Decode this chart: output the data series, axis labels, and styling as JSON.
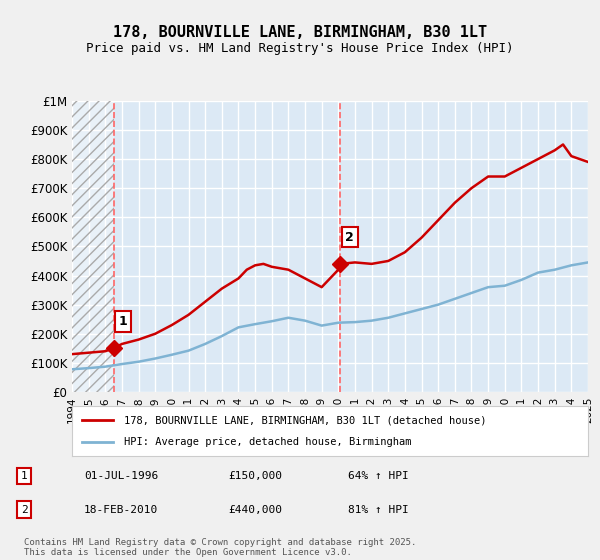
{
  "title": "178, BOURNVILLE LANE, BIRMINGHAM, B30 1LT",
  "subtitle": "Price paid vs. HM Land Registry's House Price Index (HPI)",
  "ylabel_top": "£1M",
  "yticks": [
    0,
    100000,
    200000,
    300000,
    400000,
    500000,
    600000,
    700000,
    800000,
    900000,
    1000000
  ],
  "ytick_labels": [
    "£0",
    "£100K",
    "£200K",
    "£300K",
    "£400K",
    "£500K",
    "£600K",
    "£700K",
    "£800K",
    "£900K",
    "£1M"
  ],
  "xmin": 1994,
  "xmax": 2025,
  "ymin": 0,
  "ymax": 1000000,
  "background_color": "#dce9f5",
  "plot_bg_color": "#dce9f5",
  "grid_color": "#ffffff",
  "line1_color": "#cc0000",
  "line2_color": "#7fb3d3",
  "marker_color": "#cc0000",
  "sale1_x": 1996.5,
  "sale1_y": 150000,
  "sale1_label": "1",
  "sale2_x": 2010.12,
  "sale2_y": 440000,
  "sale2_label": "2",
  "vline1_x": 1996.5,
  "vline2_x": 2010.12,
  "legend1_label": "178, BOURNVILLE LANE, BIRMINGHAM, B30 1LT (detached house)",
  "legend2_label": "HPI: Average price, detached house, Birmingham",
  "annotation1": "1    01-JUL-1996        £150,000        64% ↑ HPI",
  "annotation2": "2    18-FEB-2010        £440,000        81% ↑ HPI",
  "footnote": "Contains HM Land Registry data © Crown copyright and database right 2025.\nThis data is licensed under the Open Government Licence v3.0.",
  "hpi_years": [
    1994,
    1995,
    1996,
    1997,
    1998,
    1999,
    2000,
    2001,
    2002,
    2003,
    2004,
    2005,
    2006,
    2007,
    2008,
    2009,
    2010,
    2011,
    2012,
    2013,
    2014,
    2015,
    2016,
    2017,
    2018,
    2019,
    2020,
    2021,
    2022,
    2023,
    2024,
    2025
  ],
  "hpi_values": [
    78000,
    82000,
    87000,
    96000,
    104000,
    115000,
    128000,
    142000,
    165000,
    192000,
    222000,
    233000,
    243000,
    255000,
    245000,
    228000,
    238000,
    240000,
    245000,
    255000,
    270000,
    285000,
    300000,
    320000,
    340000,
    360000,
    365000,
    385000,
    410000,
    420000,
    435000,
    445000
  ],
  "property_years": [
    1994,
    1995,
    1996,
    1996.5,
    1997,
    1998,
    1999,
    2000,
    2001,
    2002,
    2003,
    2004,
    2004.5,
    2005,
    2005.5,
    2006,
    2007,
    2008,
    2009,
    2010,
    2010.12,
    2011,
    2012,
    2013,
    2014,
    2015,
    2016,
    2017,
    2018,
    2019,
    2020,
    2021,
    2022,
    2023,
    2023.5,
    2024,
    2024.5,
    2025
  ],
  "property_values": [
    130000,
    135000,
    140000,
    150000,
    165000,
    180000,
    200000,
    230000,
    265000,
    310000,
    355000,
    390000,
    420000,
    435000,
    440000,
    430000,
    420000,
    390000,
    360000,
    420000,
    440000,
    445000,
    440000,
    450000,
    480000,
    530000,
    590000,
    650000,
    700000,
    740000,
    740000,
    770000,
    800000,
    830000,
    850000,
    810000,
    800000,
    790000
  ]
}
